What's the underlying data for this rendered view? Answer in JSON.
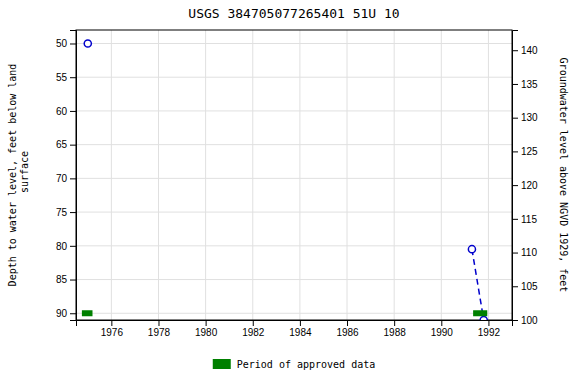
{
  "chart_data": {
    "type": "line",
    "title": "USGS 384705077265401 51U 10",
    "y_label": "Depth to water level, feet below land\n surface",
    "y2_label": "Groundwater level above NGVD 1929, feet",
    "xlim": [
      1974.5,
      1993.0
    ],
    "xticks": [
      1976,
      1978,
      1980,
      1982,
      1984,
      1986,
      1988,
      1990,
      1992
    ],
    "ylim": [
      91,
      48
    ],
    "yticks": [
      50,
      55,
      60,
      65,
      70,
      75,
      80,
      85,
      90
    ],
    "y2lim": [
      100,
      143
    ],
    "y2ticks": [
      140,
      135,
      130,
      125,
      120,
      115,
      110,
      105,
      100
    ],
    "grid": true,
    "legend": "bottom",
    "series": [
      {
        "type": "line",
        "color": "#0000cc",
        "line_style": "dashed",
        "x": [
          1991.3,
          1991.8
        ],
        "values": [
          80.5,
          91.0
        ]
      },
      {
        "type": "scatter",
        "color": "#0000cc",
        "marker": "circle",
        "x": [
          1975.0,
          1991.3,
          1991.8
        ],
        "values": [
          50.0,
          80.5,
          91.0
        ]
      },
      {
        "name": "Period of approved data",
        "type": "line",
        "color": "#008000",
        "line_style": "solid",
        "x": [
          1974.75,
          1975.2,
          null,
          1991.35,
          1991.95
        ],
        "values": [
          90.0,
          90.0,
          null,
          90.0,
          90.0
        ]
      }
    ]
  }
}
